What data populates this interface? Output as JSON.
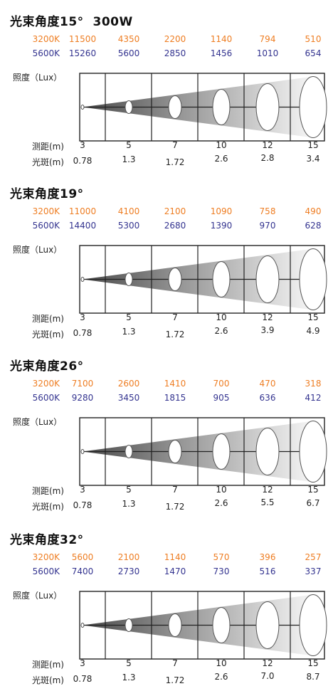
{
  "charts": [
    {
      "title": "光束角度15°  300W",
      "cct_rows": [
        {
          "label": "3200K",
          "color": "#ee7d22",
          "values": [
            "11500",
            "4350",
            "2200",
            "1140",
            "794",
            "510"
          ]
        },
        {
          "label": "5600K",
          "color": "#33338f",
          "values": [
            "15260",
            "5600",
            "2850",
            "1456",
            "1010",
            "654"
          ]
        }
      ],
      "illum_label": "照度（Lux）",
      "distance_label": "测距(m)",
      "distances": [
        "3",
        "5",
        "7",
        "10",
        "12",
        "15"
      ],
      "spot_label": "光斑(m)",
      "spots": [
        "0.78",
        "1.3",
        "1.72",
        "2.6",
        "2.8",
        "3.4"
      ]
    },
    {
      "title": "光束角度19°",
      "cct_rows": [
        {
          "label": "3200K",
          "color": "#ee7d22",
          "values": [
            "11000",
            "4100",
            "2100",
            "1090",
            "758",
            "490"
          ]
        },
        {
          "label": "5600K",
          "color": "#33338f",
          "values": [
            "14400",
            "5300",
            "2680",
            "1390",
            "970",
            "628"
          ]
        }
      ],
      "illum_label": "照度（Lux）",
      "distance_label": "测距(m)",
      "distances": [
        "3",
        "5",
        "7",
        "10",
        "12",
        "15"
      ],
      "spot_label": "光斑(m)",
      "spots": [
        "0.78",
        "1.3",
        "1.72",
        "2.6",
        "3.9",
        "4.9"
      ]
    },
    {
      "title": "光束角度26°",
      "cct_rows": [
        {
          "label": "3200K",
          "color": "#ee7d22",
          "values": [
            "7100",
            "2600",
            "1410",
            "700",
            "470",
            "318"
          ]
        },
        {
          "label": "5600K",
          "color": "#33338f",
          "values": [
            "9280",
            "3450",
            "1815",
            "905",
            "636",
            "412"
          ]
        }
      ],
      "illum_label": "照度（Lux）",
      "distance_label": "测距(m)",
      "distances": [
        "3",
        "5",
        "7",
        "10",
        "12",
        "15"
      ],
      "spot_label": "光斑(m)",
      "spots": [
        "0.78",
        "1.3",
        "1.72",
        "2.6",
        "5.5",
        "6.7"
      ]
    },
    {
      "title": "光束角度32°",
      "cct_rows": [
        {
          "label": "3200K",
          "color": "#ee7d22",
          "values": [
            "5600",
            "2100",
            "1140",
            "570",
            "396",
            "257"
          ]
        },
        {
          "label": "5600K",
          "color": "#33338f",
          "values": [
            "7400",
            "2730",
            "1470",
            "730",
            "516",
            "337"
          ]
        }
      ],
      "illum_label": "照度（Lux）",
      "distance_label": "测距(m)",
      "distances": [
        "3",
        "5",
        "7",
        "10",
        "12",
        "15"
      ],
      "spot_label": "光斑(m)",
      "spots": [
        "0.78",
        "1.3",
        "1.72",
        "2.6",
        "7.0",
        "8.7"
      ]
    }
  ],
  "chart_data": [
    {
      "type": "table",
      "title": "光束角度15°  300W",
      "x": [
        3,
        5,
        7,
        10,
        12,
        15
      ],
      "series": [
        {
          "name": "3200K",
          "values": [
            11500,
            4350,
            2200,
            1140,
            794,
            510
          ]
        },
        {
          "name": "5600K",
          "values": [
            15260,
            5600,
            2850,
            1456,
            1010,
            654
          ]
        },
        {
          "name": "光斑(m)",
          "values": [
            0.78,
            1.3,
            1.72,
            2.6,
            2.8,
            3.4
          ]
        }
      ]
    },
    {
      "type": "table",
      "title": "光束角度19°",
      "x": [
        3,
        5,
        7,
        10,
        12,
        15
      ],
      "series": [
        {
          "name": "3200K",
          "values": [
            11000,
            4100,
            2100,
            1090,
            758,
            490
          ]
        },
        {
          "name": "5600K",
          "values": [
            14400,
            5300,
            2680,
            1390,
            970,
            628
          ]
        },
        {
          "name": "光斑(m)",
          "values": [
            0.78,
            1.3,
            1.72,
            2.6,
            3.9,
            4.9
          ]
        }
      ]
    },
    {
      "type": "table",
      "title": "光束角度26°",
      "x": [
        3,
        5,
        7,
        10,
        12,
        15
      ],
      "series": [
        {
          "name": "3200K",
          "values": [
            7100,
            2600,
            1410,
            700,
            470,
            318
          ]
        },
        {
          "name": "5600K",
          "values": [
            9280,
            3450,
            1815,
            905,
            636,
            412
          ]
        },
        {
          "name": "光斑(m)",
          "values": [
            0.78,
            1.3,
            1.72,
            2.6,
            5.5,
            6.7
          ]
        }
      ]
    },
    {
      "type": "table",
      "title": "光束角度32°",
      "x": [
        3,
        5,
        7,
        10,
        12,
        15
      ],
      "series": [
        {
          "name": "3200K",
          "values": [
            5600,
            2100,
            1140,
            570,
            396,
            257
          ]
        },
        {
          "name": "5600K",
          "values": [
            7400,
            2730,
            1470,
            730,
            516,
            337
          ]
        },
        {
          "name": "光斑(m)",
          "values": [
            0.78,
            1.3,
            1.72,
            2.6,
            7.0,
            8.7
          ]
        }
      ]
    }
  ]
}
